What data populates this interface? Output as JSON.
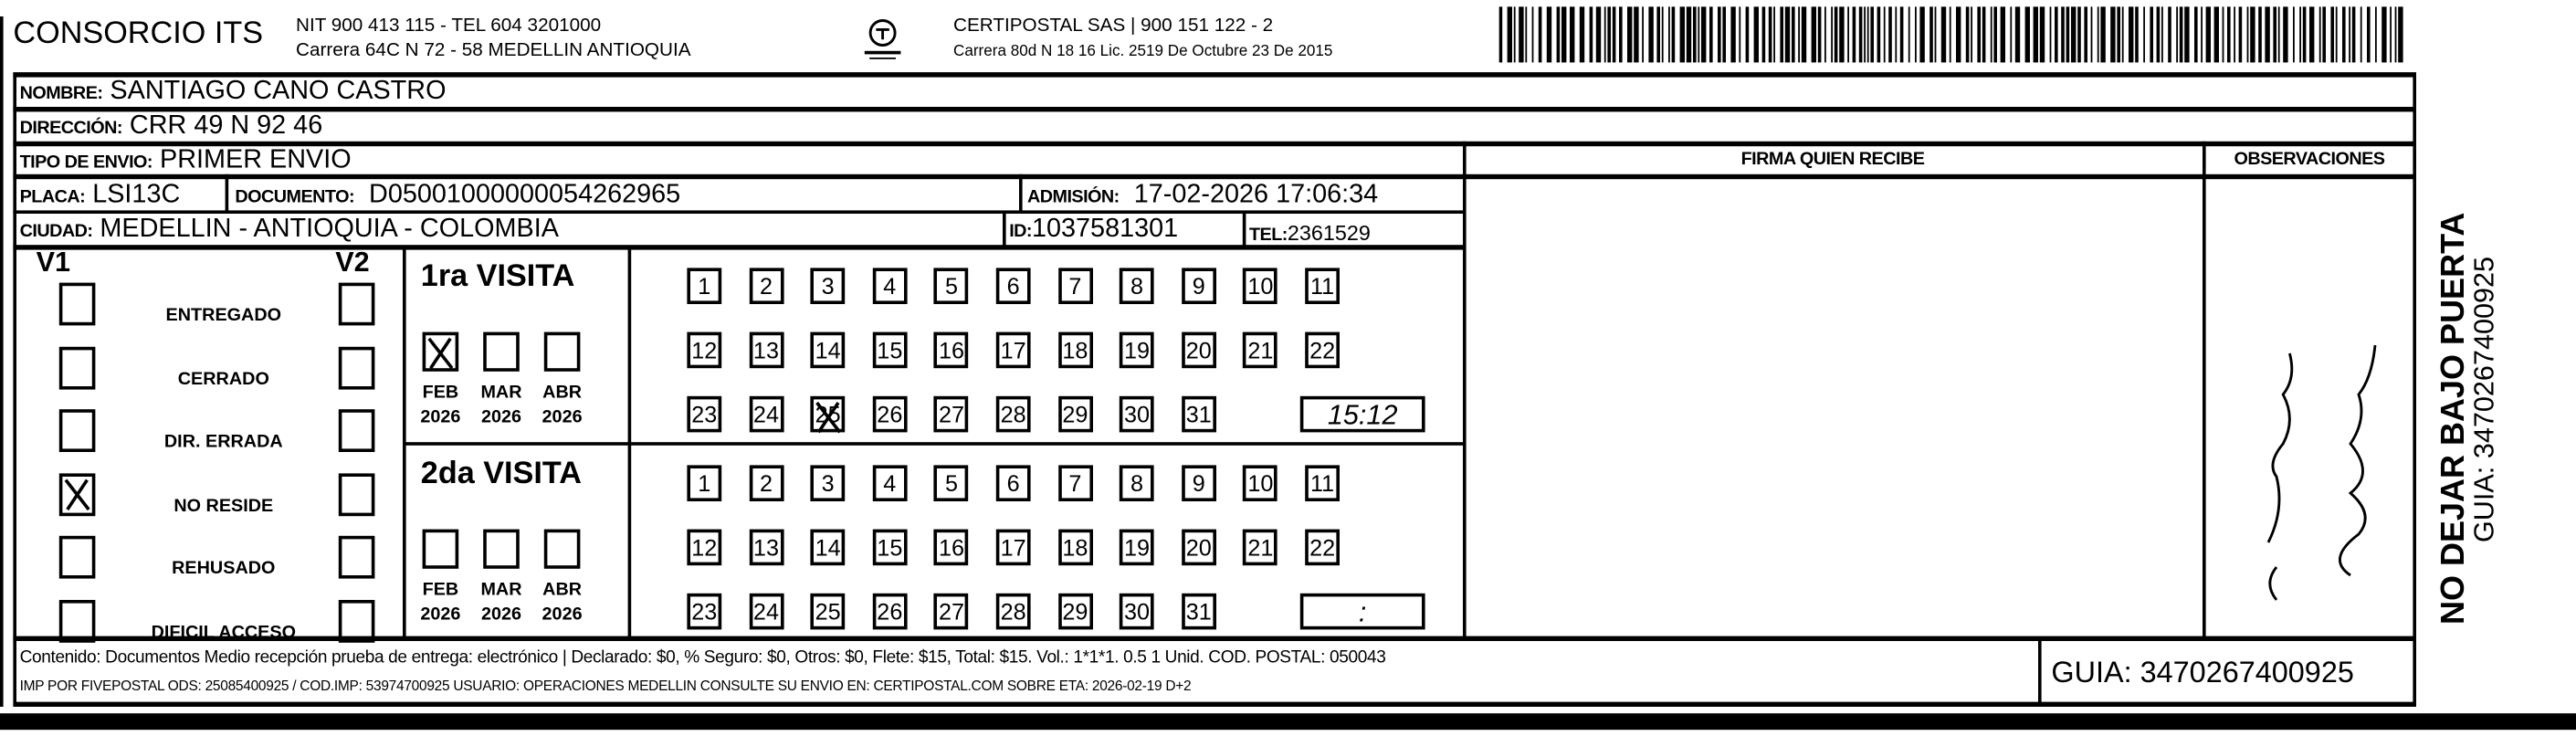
{
  "header": {
    "company": "CONSORCIO ITS",
    "company_line1": "NIT 900 413 115 - TEL 604 3201000",
    "company_line2": "Carrera 64C N 72 - 58 MEDELLIN ANTIOQUIA",
    "logo_text": "CERTIPOSTAL",
    "carrier_line1": "CERTIPOSTAL SAS | 900 151 122 - 2",
    "carrier_line2": "Carrera 80d N 18 16  Lic. 2519 De Octubre 23 De 2015"
  },
  "form": {
    "nombre_label": "NOMBRE:",
    "nombre": "SANTIAGO CANO CASTRO",
    "direccion_label": "DIRECCIÓN:",
    "direccion": "CRR 49 N 92 46",
    "tipo_label": "TIPO DE ENVIO:",
    "tipo": "PRIMER ENVIO",
    "placa_label": "PLACA:",
    "placa": "LSI13C",
    "documento_label": "DOCUMENTO:",
    "documento": "D05001000000054262965",
    "admision_label": "ADMISIÓN:",
    "admision": "17-02-2026 17:06:34",
    "ciudad_label": "CIUDAD:",
    "ciudad": "MEDELLIN - ANTIOQUIA - COLOMBIA",
    "id_label": "ID:",
    "id": "1037581301",
    "tel_label": "TEL:",
    "tel": "2361529",
    "firma_label": "FIRMA QUIEN RECIBE",
    "observaciones_label": "OBSERVACIONES"
  },
  "status": {
    "v1_label": "V1",
    "v2_label": "V2",
    "reasons": [
      {
        "label": "ENTREGADO",
        "v1": false,
        "v2": false
      },
      {
        "label": "CERRADO",
        "v1": false,
        "v2": false
      },
      {
        "label": "DIR. ERRADA",
        "v1": false,
        "v2": false
      },
      {
        "label": "NO RESIDE",
        "v1": true,
        "v2": false
      },
      {
        "label": "REHUSADO",
        "v1": false,
        "v2": false
      },
      {
        "label": "DIFICIL ACCESO",
        "v1": false,
        "v2": false
      }
    ]
  },
  "visits": [
    {
      "title": "1ra VISITA",
      "months": [
        {
          "m": "FEB",
          "y": "2026",
          "checked": true
        },
        {
          "m": "MAR",
          "y": "2026",
          "checked": false
        },
        {
          "m": "ABR",
          "y": "2026",
          "checked": false
        }
      ],
      "marked_day": 25,
      "time": "15:12"
    },
    {
      "title": "2da VISITA",
      "months": [
        {
          "m": "FEB",
          "y": "2026",
          "checked": false
        },
        {
          "m": "MAR",
          "y": "2026",
          "checked": false
        },
        {
          "m": "ABR",
          "y": "2026",
          "checked": false
        }
      ],
      "marked_day": null,
      "time": ":"
    }
  ],
  "footer": {
    "line1": "Contenido: Documentos Medio recepción prueba de entrega: electrónico | Declarado: $0, % Seguro: $0, Otros: $0, Flete: $15, Total: $15. Vol.: 1*1*1. 0.5  1 Unid. COD. POSTAL: 050043",
    "line2": "IMP POR FIVEPOSTAL ODS: 25085400925 / COD.IMP: 53974700925 USUARIO: OPERACIONES MEDELLIN CONSULTE SU ENVIO EN: CERTIPOSTAL.COM SOBRE ETA: 2026-02-19 D+2",
    "guia": "GUIA: 3470267400925"
  },
  "side": {
    "notice": "NO DEJAR BAJO PUERTA",
    "guia": "GUIA: 3470267400925"
  }
}
